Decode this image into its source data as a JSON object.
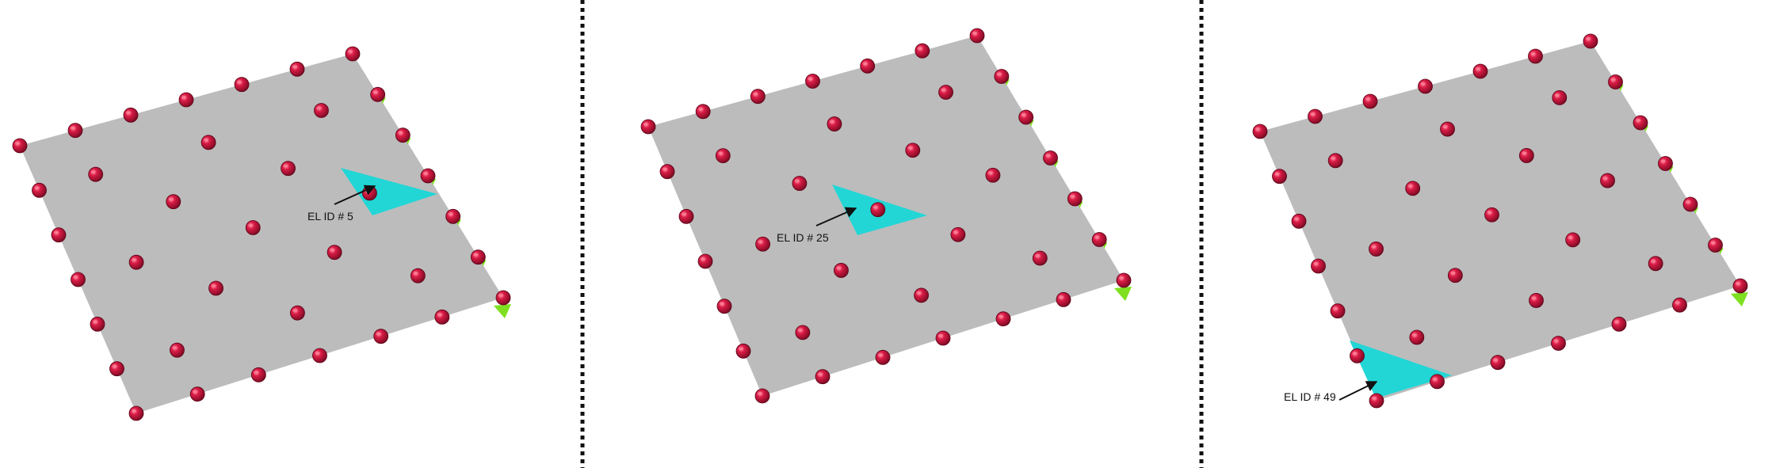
{
  "colors": {
    "plate": "#bcbcbc",
    "highlight": "#22d6d6",
    "node": "#c8143c",
    "node_highlight": "#ff7d96",
    "support": "#7ee020",
    "divider": "#111111",
    "arrow": "#111111"
  },
  "panels": [
    {
      "label": "EL ID # 5",
      "element_id": 5
    },
    {
      "label": "EL ID # 25",
      "element_id": 25
    },
    {
      "label": "EL ID # 49",
      "element_id": 49
    }
  ],
  "icons": {
    "node": "sphere-node-icon",
    "support": "fixed-support-icon",
    "divider": "dotted-divider"
  }
}
